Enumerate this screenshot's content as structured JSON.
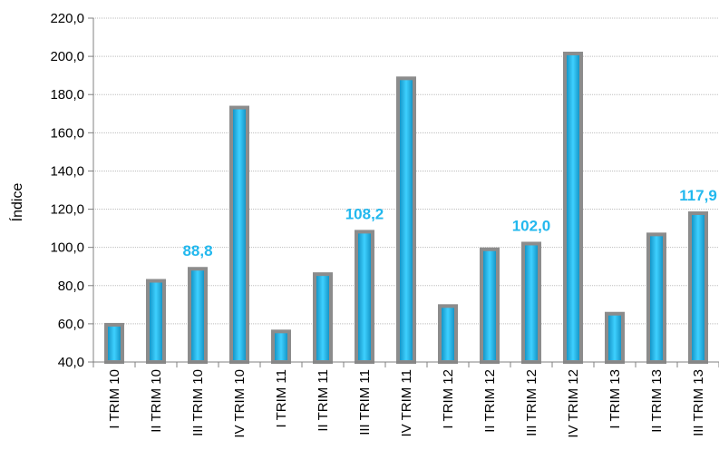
{
  "chart_data": {
    "type": "bar",
    "title": "",
    "xlabel": "",
    "ylabel": "Índice",
    "ylim": [
      40,
      220
    ],
    "yticks": [
      "40,0",
      "60,0",
      "80,0",
      "100,0",
      "120,0",
      "140,0",
      "160,0",
      "180,0",
      "200,0",
      "220,0"
    ],
    "grid": true,
    "legend": "none",
    "categories": [
      "I TRIM 10",
      "II TRIM 10",
      "III TRIM 10",
      "IV TRIM 10",
      "I TRIM 11",
      "II TRIM 11",
      "III TRIM 11",
      "IV TRIM 11",
      "I TRIM 12",
      "II TRIM 12",
      "III TRIM 12",
      "IV TRIM 12",
      "I TRIM 13",
      "II TRIM 13",
      "III TRIM 13"
    ],
    "values": [
      59.5,
      82.5,
      88.8,
      173.2,
      56.0,
      86.0,
      108.2,
      188.5,
      69.3,
      99.0,
      102.0,
      201.5,
      65.3,
      106.8,
      117.9
    ],
    "data_labels": [
      {
        "index": 2,
        "text": "88,8"
      },
      {
        "index": 6,
        "text": "108,2"
      },
      {
        "index": 10,
        "text": "102,0"
      },
      {
        "index": 14,
        "text": "117,9"
      }
    ],
    "colors": {
      "bar_fill": "#1ab6e6",
      "bar_edge": "#8c8c8c",
      "label": "#22b8ee",
      "grid": "#bfbfbf",
      "axis": "#808080"
    }
  }
}
